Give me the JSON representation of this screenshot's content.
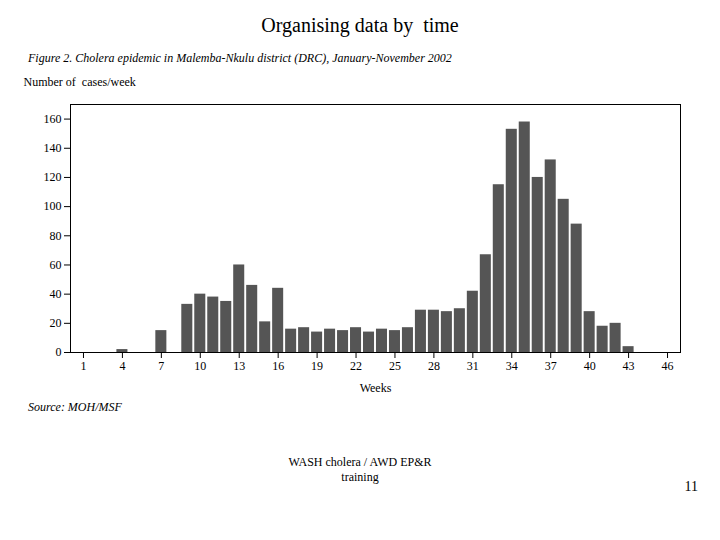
{
  "chart_data": {
    "type": "bar",
    "title": "Organising data by  time",
    "subtitle": "Figure 2. Cholera epidemic in Malemba-Nkulu district (DRC), January-November 2002",
    "ylabel": "Number of  cases/week",
    "xlabel": "Weeks",
    "annotations": [
      "Source: MOH/MSF",
      "WASH cholera / AWD EP&R\ntraining",
      "11"
    ],
    "x": [
      1,
      2,
      3,
      4,
      5,
      6,
      7,
      8,
      9,
      10,
      11,
      12,
      13,
      14,
      15,
      16,
      17,
      18,
      19,
      20,
      21,
      22,
      23,
      24,
      25,
      26,
      27,
      28,
      29,
      30,
      31,
      32,
      33,
      34,
      35,
      36,
      37,
      38,
      39,
      40,
      41,
      42,
      43,
      44,
      45,
      46
    ],
    "values": [
      0,
      0,
      0,
      2,
      0,
      0,
      15,
      0,
      33,
      40,
      38,
      35,
      60,
      46,
      21,
      44,
      16,
      17,
      14,
      16,
      15,
      17,
      14,
      16,
      15,
      17,
      29,
      29,
      28,
      30,
      42,
      67,
      115,
      153,
      158,
      120,
      132,
      105,
      88,
      28,
      18,
      20,
      4,
      0,
      0,
      0
    ],
    "color": "#555555",
    "xlim": [
      0,
      47
    ],
    "xticks": [
      1,
      4,
      7,
      10,
      13,
      16,
      19,
      22,
      25,
      28,
      31,
      34,
      37,
      40,
      43,
      46
    ],
    "ylim": [
      0,
      170
    ],
    "yticks": [
      0,
      20,
      40,
      60,
      80,
      100,
      120,
      140,
      160
    ],
    "grid": false
  }
}
